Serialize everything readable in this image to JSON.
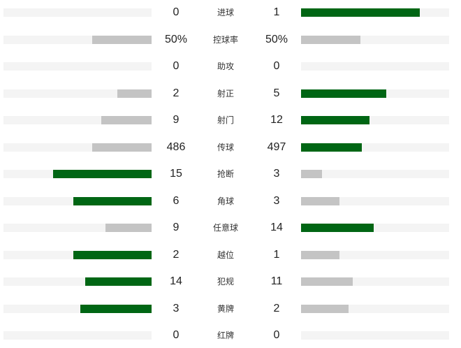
{
  "colors": {
    "leader": "#006614",
    "trailer": "#c4c4c4",
    "track": "#f4f4f4"
  },
  "stats": [
    {
      "label": "进球",
      "home": "0",
      "away": "1",
      "home_fill": 0,
      "away_fill": 0.8,
      "home_lead": false,
      "away_lead": true
    },
    {
      "label": "控球率",
      "home": "50%",
      "away": "50%",
      "home_fill": 0.4,
      "away_fill": 0.4,
      "home_lead": false,
      "away_lead": false
    },
    {
      "label": "助攻",
      "home": "0",
      "away": "0",
      "home_fill": 0,
      "away_fill": 0,
      "home_lead": false,
      "away_lead": false
    },
    {
      "label": "射正",
      "home": "2",
      "away": "5",
      "home_fill": 0.23,
      "away_fill": 0.575,
      "home_lead": false,
      "away_lead": true
    },
    {
      "label": "射门",
      "home": "9",
      "away": "12",
      "home_fill": 0.34,
      "away_fill": 0.46,
      "home_lead": false,
      "away_lead": true
    },
    {
      "label": "传球",
      "home": "486",
      "away": "497",
      "home_fill": 0.4,
      "away_fill": 0.41,
      "home_lead": false,
      "away_lead": true
    },
    {
      "label": "抢断",
      "home": "15",
      "away": "3",
      "home_fill": 0.665,
      "away_fill": 0.14,
      "home_lead": true,
      "away_lead": false
    },
    {
      "label": "角球",
      "home": "6",
      "away": "3",
      "home_fill": 0.53,
      "away_fill": 0.26,
      "home_lead": true,
      "away_lead": false
    },
    {
      "label": "任意球",
      "home": "9",
      "away": "14",
      "home_fill": 0.31,
      "away_fill": 0.49,
      "home_lead": false,
      "away_lead": true
    },
    {
      "label": "越位",
      "home": "2",
      "away": "1",
      "home_fill": 0.53,
      "away_fill": 0.26,
      "home_lead": true,
      "away_lead": false
    },
    {
      "label": "犯规",
      "home": "14",
      "away": "11",
      "home_fill": 0.45,
      "away_fill": 0.35,
      "home_lead": true,
      "away_lead": false
    },
    {
      "label": "黄牌",
      "home": "3",
      "away": "2",
      "home_fill": 0.48,
      "away_fill": 0.32,
      "home_lead": true,
      "away_lead": false
    },
    {
      "label": "红牌",
      "home": "0",
      "away": "0",
      "home_fill": 0,
      "away_fill": 0,
      "home_lead": false,
      "away_lead": false
    }
  ]
}
